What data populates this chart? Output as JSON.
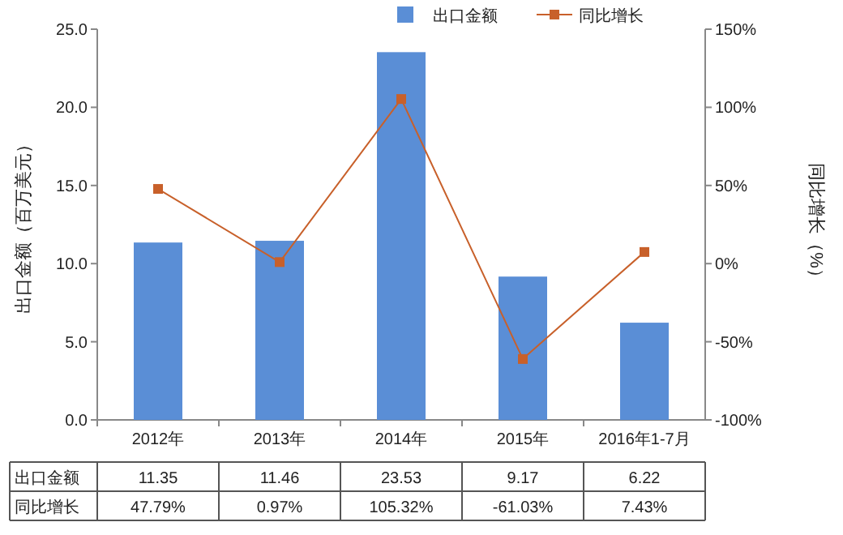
{
  "chart_data": {
    "type": "bar",
    "ylabel": "出口金额（百万美元）",
    "y2label": "同比增长（%）",
    "categories": [
      "2012年",
      "2013年",
      "2014年",
      "2015年",
      "2016年1-7月"
    ],
    "series": [
      {
        "name": "出口金额",
        "color": "#5a8ed6",
        "values": [
          11.35,
          11.46,
          23.53,
          9.17,
          6.22
        ],
        "value_labels": [
          "11.35",
          "11.46",
          "23.53",
          "9.17",
          "6.22"
        ]
      },
      {
        "name": "同比增长",
        "type": "line",
        "axis": "y2",
        "color": "#c8602a",
        "marker": "square",
        "values": [
          47.79,
          0.97,
          105.32,
          -61.03,
          7.43
        ],
        "value_labels": [
          "47.79%",
          "0.97%",
          "105.32%",
          "-61.03%",
          "7.43%"
        ]
      }
    ],
    "ylim": [
      0,
      25
    ],
    "yticks": [
      {
        "value": 0,
        "label": "0.0"
      },
      {
        "value": 5,
        "label": "5.0"
      },
      {
        "value": 10,
        "label": "10.0"
      },
      {
        "value": 15,
        "label": "15.0"
      },
      {
        "value": 20,
        "label": "20.0"
      },
      {
        "value": 25,
        "label": "25.0"
      }
    ],
    "y2lim": [
      -100,
      150
    ],
    "y2ticks": [
      {
        "value": -100,
        "label": "-100%"
      },
      {
        "value": -50,
        "label": "-50%"
      },
      {
        "value": 0,
        "label": "0%"
      },
      {
        "value": 50,
        "label": "50%"
      },
      {
        "value": 100,
        "label": "100%"
      },
      {
        "value": 150,
        "label": "150%"
      }
    ],
    "legend": "top"
  }
}
